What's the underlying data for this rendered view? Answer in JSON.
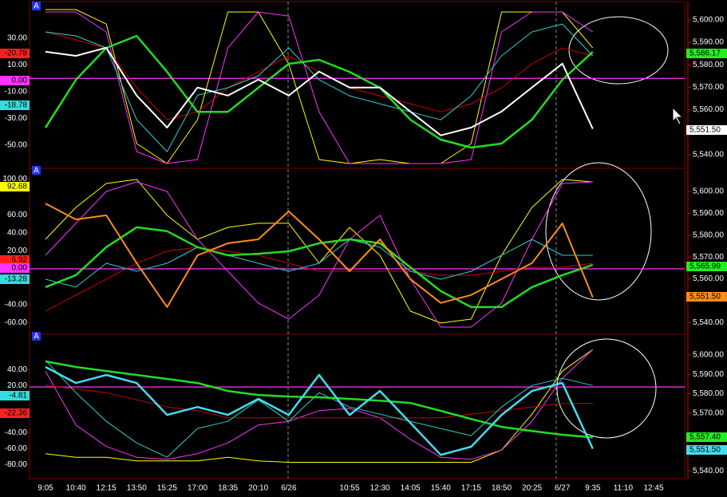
{
  "chart_data": [
    {
      "type": "line",
      "badge": "A",
      "hline": 0,
      "ylim": [
        -66.7,
        53.9
      ],
      "yticks": [
        {
          "value": 30,
          "label": "30.00"
        },
        {
          "value": 10,
          "label": "10.00"
        },
        {
          "value": -10,
          "label": "-10.00"
        },
        {
          "value": -30,
          "label": "-30.00"
        },
        {
          "value": -50,
          "label": "-50.00"
        }
      ],
      "y2lim": [
        5534.3,
        5606
      ],
      "y2ticks": [
        {
          "value": 5600,
          "label": "5,600.00"
        },
        {
          "value": 5590,
          "label": "5,590.00"
        },
        {
          "value": 5580,
          "label": "5,580.00"
        },
        {
          "value": 5570,
          "label": "5,570.00"
        },
        {
          "value": 5560,
          "label": "5,560.00"
        },
        {
          "value": 5540,
          "label": "5,540.00"
        }
      ],
      "series": [
        {
          "color": "#ffff00",
          "values": [
            51.5,
            51.5,
            40.7,
            -48.8,
            -63.7,
            -30.9,
            49.7,
            49.7,
            10.9,
            -60.7,
            -63.7,
            -60.7,
            -63.7,
            -63.7,
            -48.8,
            49.7,
            49.7,
            49.7,
            22.8,
            null,
            null
          ]
        },
        {
          "color": "#ff33ff",
          "values": [
            49.7,
            49.7,
            34.8,
            -54.8,
            -63.7,
            -60.7,
            22.8,
            49.7,
            46.7,
            -25,
            -63.7,
            -63.7,
            -63.7,
            -63.7,
            -60.7,
            34.8,
            49.7,
            49.7,
            34.8,
            null,
            null
          ]
        },
        {
          "color": "#cc0000",
          "values": [
            34.8,
            28.8,
            22.8,
            -7,
            -30.9,
            -25,
            -7,
            4.9,
            16.9,
            4.9,
            -7,
            -13,
            -19,
            -25,
            -19,
            -7,
            10.9,
            22.8,
            16.9,
            null,
            null
          ]
        },
        {
          "color": "#33cccc",
          "values": [
            34.8,
            31.8,
            22.8,
            -30.9,
            -54.8,
            -12.6,
            -7,
            2,
            22.8,
            -1,
            -13,
            -19,
            -25,
            -31,
            -13,
            16.9,
            34.8,
            40.7,
            16.9,
            null,
            null
          ]
        },
        {
          "color": "#22dd22",
          "width": 2.5,
          "values": [
            -36.9,
            -1,
            22.8,
            31.8,
            4.9,
            -25,
            -25,
            -7,
            10.9,
            13.9,
            4.9,
            -7,
            -30.9,
            -45.8,
            -51.8,
            -48.8,
            -30.9,
            -1,
            19.8,
            null,
            null
          ]
        },
        {
          "color": "#ffffff",
          "width": 2,
          "axis": "y2",
          "values": [
            5585.8,
            5584,
            5587.6,
            5566.3,
            5552.1,
            5569.9,
            5566.3,
            5573.4,
            5566.3,
            5577,
            5569.9,
            5569.9,
            5559.2,
            5548.6,
            5552.1,
            5559.2,
            5569.9,
            5580.5,
            5551.5,
            null,
            null
          ]
        }
      ],
      "tags": [
        {
          "label": "-20.78",
          "color": "#ff2020",
          "side": "left"
        },
        {
          "label": "0.00",
          "color": "#ff33ff",
          "side": "left"
        },
        {
          "label": "-18.78",
          "color": "#33dddd",
          "side": "left"
        },
        {
          "label": "5,586.17",
          "color": "#22ee22",
          "side": "right"
        },
        {
          "label": "5,551.50",
          "color": "#ffffff",
          "side": "right"
        }
      ]
    },
    {
      "type": "line",
      "badge": "A",
      "hline": 0,
      "ylim": [
        -72,
        109.3
      ],
      "yticks": [
        {
          "value": 100,
          "label": "100.00"
        },
        {
          "value": 60,
          "label": "60.00"
        },
        {
          "value": 40,
          "label": "40.00"
        },
        {
          "value": 20,
          "label": "20.00"
        },
        {
          "value": -40,
          "label": "-40.00"
        },
        {
          "value": -60,
          "label": "-60.00"
        }
      ],
      "y2lim": [
        5535,
        5609.5
      ],
      "y2ticks": [
        {
          "value": 5600,
          "label": "5,600.00"
        },
        {
          "value": 5590,
          "label": "5,590.00"
        },
        {
          "value": 5580,
          "label": "5,580.00"
        },
        {
          "value": 5570,
          "label": "5,570.00"
        },
        {
          "value": 5560,
          "label": "5,560.00"
        },
        {
          "value": 5540,
          "label": "5,540.00"
        }
      ],
      "series": [
        {
          "color": "#ffff00",
          "values": [
            32.9,
            68.4,
            95.1,
            99.6,
            59.6,
            32.9,
            46.2,
            50.7,
            50.7,
            6.2,
            46.2,
            15.1,
            -47.1,
            -60.4,
            -56,
            15.1,
            68.4,
            99.6,
            96.9,
            null,
            null
          ]
        },
        {
          "color": "#ff33ff",
          "values": [
            15.1,
            50.7,
            86.2,
            96.9,
            86.2,
            32.9,
            -2.7,
            -38.2,
            -56,
            -29.3,
            32.9,
            59.6,
            -11.6,
            -64.9,
            -64.9,
            -38.2,
            32.9,
            95.1,
            96.9,
            null,
            null
          ]
        },
        {
          "color": "#cc0000",
          "values": [
            -47.1,
            -29.3,
            -11.6,
            6.2,
            19.6,
            24,
            19.6,
            15.1,
            6.2,
            -2.7,
            -2.7,
            -2.7,
            -2.7,
            -7.1,
            -7.1,
            -2.7,
            1.8,
            1.8,
            6.2,
            null,
            null
          ]
        },
        {
          "color": "#33cccc",
          "values": [
            -11.6,
            -20.4,
            6.2,
            -2.7,
            6.2,
            24,
            15.1,
            6.2,
            -2.7,
            6.2,
            32.9,
            24,
            -2.7,
            -11.6,
            -2.7,
            15.1,
            32.9,
            15.1,
            15.1,
            null,
            null
          ]
        },
        {
          "color": "#22dd22",
          "width": 2.5,
          "axis": "y2",
          "values": [
            5556.2,
            5561.7,
            5574.5,
            5583.6,
            5581.8,
            5574.5,
            5570.8,
            5571.5,
            5572.6,
            5576.3,
            5578.1,
            5576.3,
            5565.3,
            5554.4,
            5547.1,
            5547.1,
            5556.2,
            5561.7,
            5566.4,
            null,
            null
          ]
        },
        {
          "color": "#ff8c1a",
          "width": 2,
          "axis": "y2",
          "values": [
            5594.5,
            5587.2,
            5589.1,
            5567.2,
            5547.1,
            5570.8,
            5576.3,
            5578.1,
            5590.9,
            5578.1,
            5563.5,
            5578.1,
            5559.9,
            5549,
            5552.6,
            5559.9,
            5567.2,
            5585.4,
            5551.5,
            null,
            null
          ]
        }
      ],
      "tags": [
        {
          "label": "92.68",
          "color": "#ffff00",
          "side": "left"
        },
        {
          "label": "6.92",
          "color": "#ff2020",
          "side": "left"
        },
        {
          "label": "0.00",
          "color": "#ff33ff",
          "side": "left"
        },
        {
          "label": "-13.28",
          "color": "#33dddd",
          "side": "left"
        },
        {
          "label": "5,565.99",
          "color": "#22ee22",
          "side": "right"
        },
        {
          "label": "5,551.50",
          "color": "#ff8c1a",
          "side": "right"
        }
      ]
    },
    {
      "type": "line",
      "badge": "A",
      "hline": 18,
      "categories": [
        "9:05",
        "10:40",
        "12:15",
        "13:50",
        "15:25",
        "17:00",
        "18:35",
        "20:10",
        "6/26",
        null,
        "10:55",
        "12:30",
        "14:05",
        "15:40",
        "17:15",
        "18:50",
        "20:25",
        "6/27",
        "9:35",
        "11:10",
        "12:45"
      ],
      "ylim": [
        -98,
        81.8
      ],
      "yticks": [
        {
          "value": 40,
          "label": "40.00"
        },
        {
          "value": 20,
          "label": "20.00"
        },
        {
          "value": -40,
          "label": "-40.00"
        },
        {
          "value": -60,
          "label": "-60.00"
        },
        {
          "value": -80,
          "label": "-80.00"
        }
      ],
      "y2lim": [
        5536,
        5609.5
      ],
      "y2ticks": [
        {
          "value": 5600,
          "label": "5,600.00"
        },
        {
          "value": 5590,
          "label": "5,590.00"
        },
        {
          "value": 5580,
          "label": "5,580.00"
        },
        {
          "value": 5570,
          "label": "5,570.00"
        },
        {
          "value": 5540,
          "label": "5,540.00"
        }
      ],
      "series": [
        {
          "color": "#ffff00",
          "values": [
            -66.4,
            -70.9,
            -70.9,
            -75.5,
            -75.5,
            -75.5,
            -70.9,
            -75.5,
            -77.3,
            -77.3,
            -77.3,
            -77.3,
            -77.3,
            -77.3,
            -77.3,
            -61.8,
            -16.4,
            38.2,
            65.5,
            null,
            null
          ]
        },
        {
          "color": "#ff33ff",
          "values": [
            38.2,
            -30,
            -57.3,
            -70.9,
            -73.6,
            -66.4,
            -52.7,
            -30,
            -25.5,
            -11.8,
            -9.1,
            -20.9,
            -48.2,
            -70.9,
            -73.6,
            -61.8,
            -25.5,
            29.1,
            65.5,
            null,
            null
          ]
        },
        {
          "color": "#cc0000",
          "values": [
            20,
            15.5,
            10.9,
            1.8,
            -7.3,
            -11.8,
            -20.9,
            -20.9,
            -20.9,
            -20.9,
            -20.9,
            -20.9,
            -20.9,
            -20.9,
            -16.4,
            -11.8,
            -7.3,
            -2.7,
            -2.7,
            null,
            null
          ]
        },
        {
          "color": "#33cccc",
          "values": [
            51.8,
            10.9,
            -25.5,
            -52.7,
            -70.9,
            -34.5,
            -25.5,
            1.8,
            -25.5,
            10.9,
            -7.3,
            -16.4,
            -25.5,
            -34.5,
            -43.6,
            -7.3,
            20,
            29.1,
            20,
            null,
            null
          ]
        },
        {
          "color": "#22dd22",
          "width": 2.5,
          "axis": "y2",
          "values": [
            5596.7,
            5593.8,
            5591.7,
            5589.7,
            5587.6,
            5585.5,
            5581.4,
            5579.3,
            5578.5,
            5578.1,
            5577.3,
            5576.4,
            5575.2,
            5571.1,
            5566.9,
            5562.8,
            5560.7,
            5558.7,
            5557.4,
            null,
            null
          ]
        },
        {
          "color": "#44ddee",
          "width": 2.5,
          "axis": "y2",
          "values": [
            5593.8,
            5585.5,
            5589.7,
            5585.5,
            5569,
            5573.1,
            5569,
            5577.3,
            5569,
            5589.7,
            5569,
            5581.4,
            5564.9,
            5548.3,
            5552.5,
            5569,
            5581.4,
            5585.5,
            5551.5,
            null,
            null
          ]
        }
      ],
      "tags": [
        {
          "label": "-4.81",
          "color": "#33dddd",
          "side": "left"
        },
        {
          "label": "-22.36",
          "color": "#ff2020",
          "side": "left"
        },
        {
          "label": "5,557.40",
          "color": "#22ee22",
          "side": "right"
        },
        {
          "label": "5,551.50",
          "color": "#44ddee",
          "side": "right"
        }
      ]
    }
  ]
}
